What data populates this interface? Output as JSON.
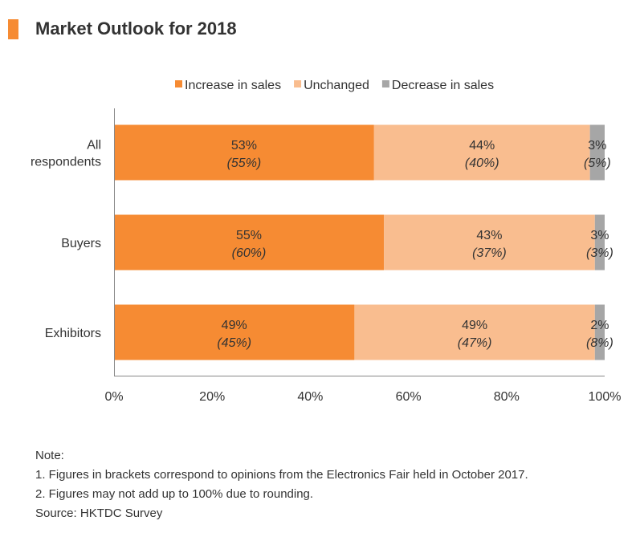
{
  "title": "Market Outlook for 2018",
  "colors": {
    "accent": "#f68b33",
    "increase": "#f68b33",
    "unchanged": "#f9bd8f",
    "decrease": "#a6a6a6"
  },
  "chart_data": {
    "type": "bar",
    "orientation": "horizontal",
    "stacked": true,
    "categories": [
      "All\nrespondents",
      "Buyers",
      "Exhibitors"
    ],
    "series": [
      {
        "name": "Increase in sales",
        "values": [
          53,
          55,
          49
        ],
        "prior_values": [
          55,
          60,
          45
        ]
      },
      {
        "name": "Unchanged",
        "values": [
          44,
          43,
          49
        ],
        "prior_values": [
          40,
          37,
          47
        ]
      },
      {
        "name": "Decrease in sales",
        "values": [
          3,
          3,
          2
        ],
        "prior_values": [
          5,
          3,
          8
        ]
      }
    ],
    "xlim": [
      0,
      100
    ],
    "xticks": [
      "0%",
      "20%",
      "40%",
      "60%",
      "80%",
      "100%"
    ],
    "legend_position": "top",
    "grid": false
  },
  "notes": {
    "heading": "Note:",
    "line1": "1. Figures in brackets correspond to opinions from the Electronics Fair held in October 2017.",
    "line2": "2. Figures may not add up to 100% due to rounding.",
    "source": "Source: HKTDC Survey"
  }
}
